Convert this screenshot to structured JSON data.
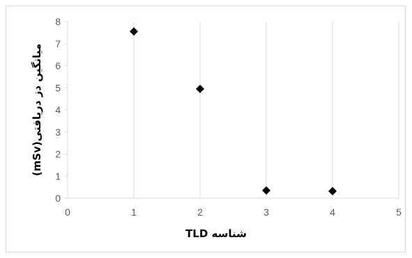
{
  "chart_data": {
    "type": "scatter",
    "title": "",
    "xlabel": "شناسه TLD",
    "ylabel": "میانگین دز دریافتی(mSv)",
    "xlim": [
      0,
      5
    ],
    "ylim": [
      0,
      8
    ],
    "xticks": [
      "0",
      "1",
      "2",
      "3",
      "4",
      "5"
    ],
    "yticks": [
      "0",
      "1",
      "2",
      "3",
      "4",
      "5",
      "6",
      "7",
      "8"
    ],
    "grid": "vertical",
    "legend": "none",
    "marker": "diamond",
    "marker_color": "#000000",
    "gridline_color": "#d9d9d9",
    "points": [
      {
        "x": 1,
        "y": 7.55
      },
      {
        "x": 2,
        "y": 4.95
      },
      {
        "x": 3,
        "y": 0.35
      },
      {
        "x": 4,
        "y": 0.32
      }
    ]
  }
}
